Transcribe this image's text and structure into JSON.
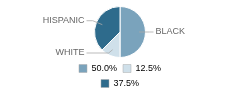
{
  "chart_data": {
    "type": "pie",
    "categories": [
      "BLACK",
      "WHITE",
      "HISPANIC"
    ],
    "values": [
      50.0,
      12.5,
      37.5
    ],
    "value_labels": [
      "50.0%",
      "12.5%",
      "37.5%"
    ],
    "colors": [
      "#7aa3bc",
      "#cfe0ea",
      "#2e6b8c"
    ],
    "legend": "bottom"
  }
}
